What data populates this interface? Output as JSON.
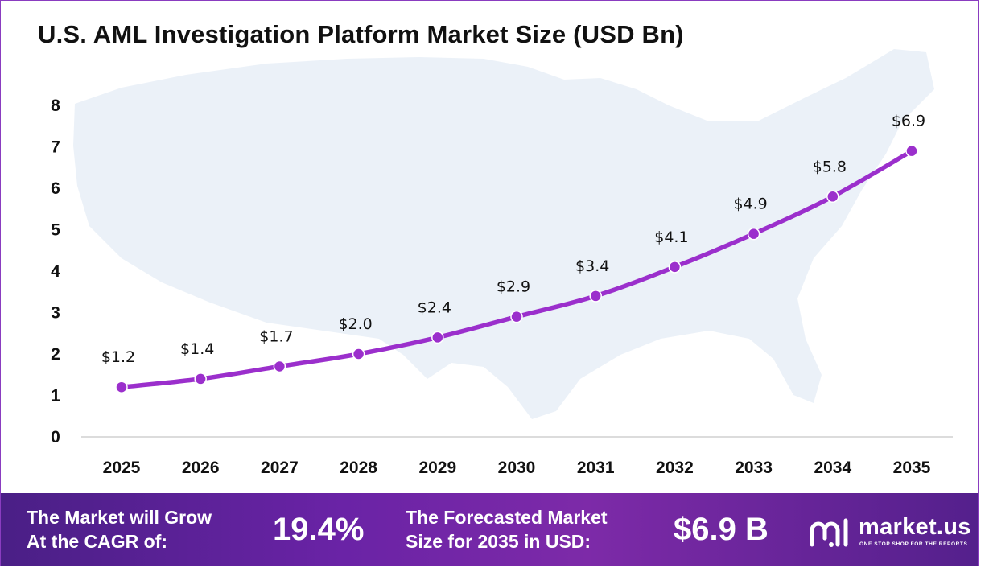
{
  "colors": {
    "line": "#9b2fcc",
    "marker": "#9b2fcc",
    "footer_start": "#4a1f86",
    "footer_end": "#7d2aa8",
    "map_fill": "#e8eef7"
  },
  "chart_data": {
    "type": "line",
    "title": "U.S. AML Investigation Platform Market Size (USD Bn)",
    "categories": [
      "2025",
      "2026",
      "2027",
      "2028",
      "2029",
      "2030",
      "2031",
      "2032",
      "2033",
      "2034",
      "2035"
    ],
    "series": [
      {
        "values": [
          1.2,
          1.4,
          1.7,
          2.0,
          2.4,
          2.9,
          3.4,
          4.1,
          4.9,
          5.8,
          6.9
        ]
      }
    ],
    "data_labels": [
      "$1.2",
      "$1.4",
      "$1.7",
      "$2.0",
      "$2.4",
      "$2.9",
      "$3.4",
      "$4.1",
      "$4.9",
      "$5.8",
      "$6.9"
    ],
    "y_ticks": [
      0,
      1,
      2,
      3,
      4,
      5,
      6,
      7,
      8
    ],
    "ylim": [
      0,
      8
    ],
    "xlabel": "",
    "ylabel": "",
    "grid": false,
    "legend": "none"
  },
  "footer": {
    "cagr_label_line1": "The Market will Grow",
    "cagr_label_line2": "At the CAGR of:",
    "cagr_value": "19.4%",
    "forecast_label_line1": "The Forecasted Market",
    "forecast_label_line2": "Size for 2035 in USD:",
    "forecast_value": "$6.9 B"
  },
  "brand": {
    "name": "market.us",
    "tagline": "ONE STOP SHOP FOR THE REPORTS",
    "icon": "market-us-logo-icon"
  }
}
